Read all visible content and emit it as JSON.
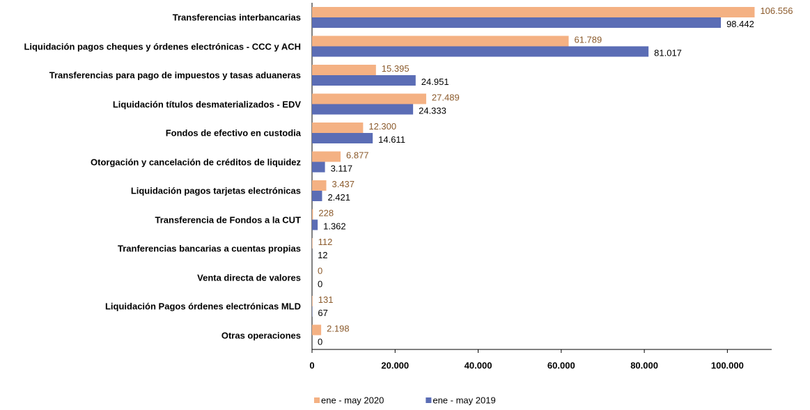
{
  "chart_data": {
    "type": "barh",
    "categories": [
      "Transferencias interbancarias",
      "Liquidación pagos cheques y órdenes electrónicas - CCC y ACH",
      "Transferencias para pago de impuestos y tasas aduaneras",
      "Liquidación títulos desmaterializados - EDV",
      "Fondos de efectivo en custodia",
      "Otorgación y cancelación de créditos de liquidez",
      "Liquidación pagos tarjetas electrónicas",
      "Transferencia de Fondos a la CUT",
      "Tranferencias bancarias a cuentas propias",
      "Venta directa de valores",
      "Liquidación Pagos órdenes electrónicas MLD",
      "Otras operaciones"
    ],
    "series": [
      {
        "name": "ene - may 2020",
        "color": "#f4b183",
        "label_color": "#8b5a2b",
        "values": [
          106556,
          61789,
          15395,
          27489,
          12300,
          6877,
          3437,
          228,
          112,
          0,
          131,
          2198
        ],
        "value_labels": [
          "106.556",
          "61.789",
          "15.395",
          "27.489",
          "12.300",
          "6.877",
          "3.437",
          "228",
          "112",
          "0",
          "131",
          "2.198"
        ]
      },
      {
        "name": "ene - may 2019",
        "color": "#5b6db5",
        "label_color": "#000000",
        "values": [
          98442,
          81017,
          24951,
          24333,
          14611,
          3117,
          2421,
          1362,
          12,
          0,
          67,
          0
        ],
        "value_labels": [
          "98.442",
          "81.017",
          "24.951",
          "24.333",
          "14.611",
          "3.117",
          "2.421",
          "1.362",
          "12",
          "0",
          "67",
          "0"
        ]
      }
    ],
    "xlim": [
      0,
      110000
    ],
    "xticks": [
      0,
      {
        "value": 20000,
        "label": "20.000"
      },
      {
        "value": 40000,
        "label": "40.000"
      },
      {
        "value": 60000,
        "label": "60.000"
      },
      {
        "value": 80000,
        "label": "80.000"
      },
      {
        "value": 100000,
        "label": "100.000"
      }
    ],
    "grid": false,
    "legend": "bottom"
  }
}
